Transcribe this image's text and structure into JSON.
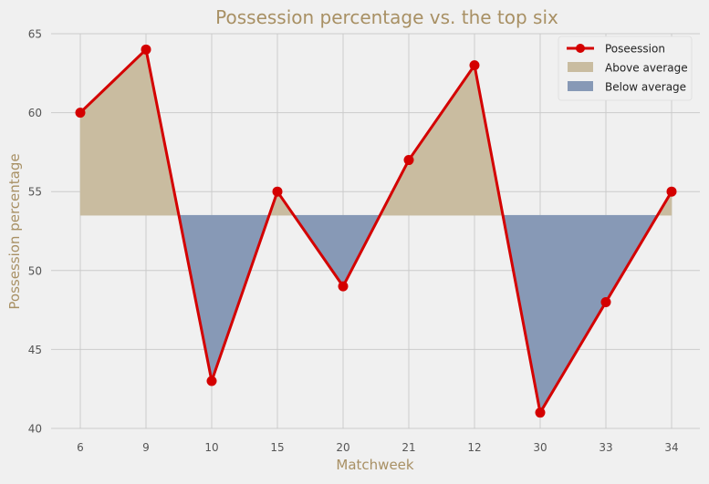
{
  "chart_data": {
    "type": "line",
    "title": "Possession percentage vs. the top six",
    "xlabel": "Matchweek",
    "ylabel": "Possession percentage",
    "categories": [
      "6",
      "9",
      "10",
      "15",
      "20",
      "21",
      "12",
      "30",
      "33",
      "34"
    ],
    "series": [
      {
        "name": "Poseession",
        "values": [
          60,
          64,
          43,
          55,
          49,
          57,
          63,
          41,
          48,
          55
        ]
      }
    ],
    "average": 53.5,
    "fills": [
      {
        "name": "Above average",
        "color": "#c9bca0"
      },
      {
        "name": "Below average",
        "color": "#8799b6"
      }
    ],
    "ylim": [
      40,
      65
    ],
    "yticks": [
      40,
      45,
      50,
      55,
      60,
      65
    ],
    "grid": true,
    "legend_position": "top-right",
    "colors": {
      "line": "#d40000",
      "title": "#a89064",
      "axis_label": "#a89064",
      "tick": "#555555",
      "grid": "#cbcbcb",
      "background": "#f0f0f0"
    }
  }
}
